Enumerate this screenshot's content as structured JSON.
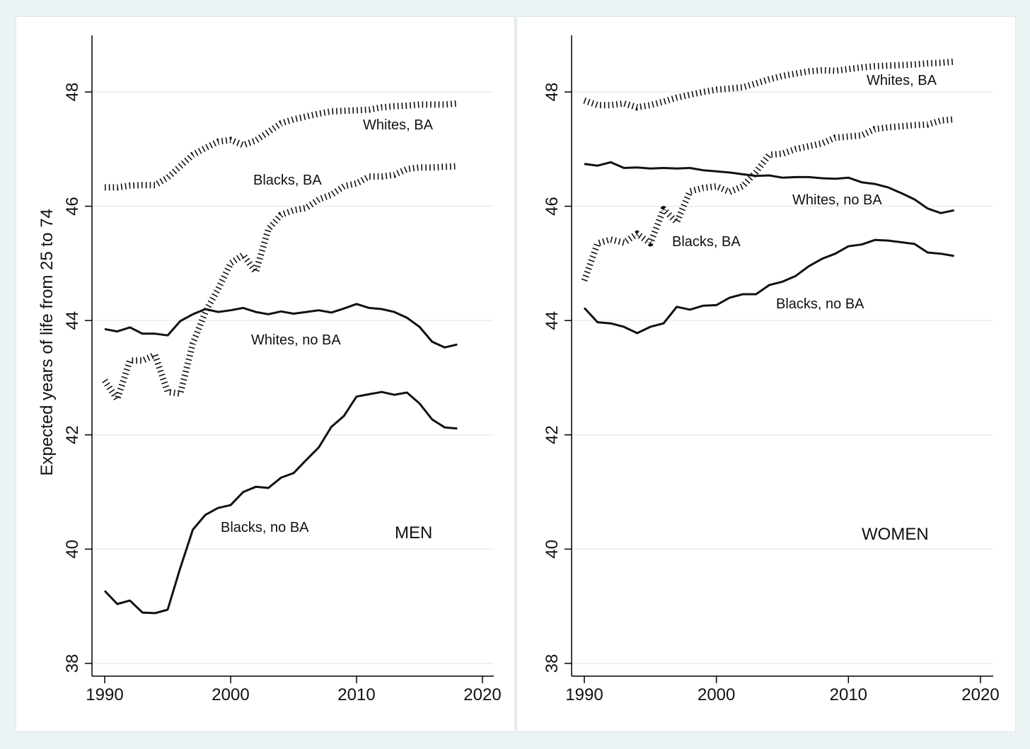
{
  "chart_data": {
    "type": "line",
    "ylabel": "Expected years of life from 25 to 74",
    "ylim": [
      38,
      49
    ],
    "xlim": [
      1989,
      2021
    ],
    "x_ticks": [
      "1990",
      "2000",
      "2010",
      "2020"
    ],
    "y_ticks": [
      "38",
      "40",
      "42",
      "44",
      "46",
      "48"
    ],
    "grid": "horizontal",
    "x": [
      1990,
      1991,
      1992,
      1993,
      1994,
      1995,
      1996,
      1997,
      1998,
      1999,
      2000,
      2001,
      2002,
      2003,
      2004,
      2005,
      2006,
      2007,
      2008,
      2009,
      2010,
      2011,
      2012,
      2013,
      2014,
      2015,
      2016,
      2017,
      2018
    ],
    "panels": [
      {
        "title": "MEN",
        "series": [
          {
            "name": "Whites, BA",
            "style": "dotted",
            "values": [
              46.33,
              46.33,
              46.36,
              46.37,
              46.37,
              46.5,
              46.7,
              46.9,
              47.02,
              47.13,
              47.16,
              47.07,
              47.15,
              47.3,
              47.45,
              47.52,
              47.57,
              47.62,
              47.66,
              47.67,
              47.68,
              47.69,
              47.73,
              47.75,
              47.76,
              47.78,
              47.78,
              47.78,
              47.8
            ]
          },
          {
            "name": "Blacks, BA",
            "style": "dotted",
            "values": [
              42.95,
              42.62,
              43.3,
              43.3,
              43.4,
              42.75,
              42.72,
              43.6,
              44.15,
              44.55,
              45.0,
              45.15,
              44.85,
              45.6,
              45.85,
              45.93,
              45.97,
              46.12,
              46.2,
              46.35,
              46.4,
              46.52,
              46.52,
              46.55,
              46.65,
              46.68,
              46.68,
              46.69,
              46.7
            ]
          },
          {
            "name": "Whites, no BA",
            "style": "solid",
            "values": [
              43.85,
              43.81,
              43.88,
              43.77,
              43.77,
              43.74,
              43.99,
              44.11,
              44.2,
              44.15,
              44.18,
              44.22,
              44.15,
              44.11,
              44.16,
              44.12,
              44.15,
              44.18,
              44.14,
              44.21,
              44.29,
              44.22,
              44.2,
              44.15,
              44.05,
              43.89,
              43.63,
              43.53,
              43.58
            ]
          },
          {
            "name": "Blacks, no BA",
            "style": "solid",
            "values": [
              39.27,
              39.04,
              39.1,
              38.89,
              38.88,
              38.94,
              39.67,
              40.34,
              40.6,
              40.72,
              40.77,
              41.0,
              41.09,
              41.07,
              41.25,
              41.33,
              41.56,
              41.78,
              42.14,
              42.33,
              42.67,
              42.71,
              42.75,
              42.7,
              42.74,
              42.55,
              42.27,
              42.13,
              42.11
            ]
          }
        ]
      },
      {
        "title": "WOMEN",
        "series": [
          {
            "name": "Whites, BA",
            "style": "dotted",
            "values": [
              47.85,
              47.77,
              47.77,
              47.8,
              47.73,
              47.77,
              47.83,
              47.9,
              47.95,
              48.0,
              48.04,
              48.06,
              48.08,
              48.15,
              48.22,
              48.28,
              48.32,
              48.36,
              48.38,
              48.37,
              48.4,
              48.43,
              48.45,
              48.46,
              48.47,
              48.48,
              48.5,
              48.51,
              48.53
            ]
          },
          {
            "name": "Blacks, BA",
            "style": "dotted",
            "values": [
              44.7,
              45.35,
              45.42,
              45.36,
              45.52,
              45.35,
              45.95,
              45.72,
              46.26,
              46.32,
              46.35,
              46.25,
              46.35,
              46.6,
              46.9,
              46.92,
              47.0,
              47.05,
              47.1,
              47.2,
              47.22,
              47.24,
              47.35,
              47.38,
              47.4,
              47.42,
              47.43,
              47.5,
              47.52
            ]
          },
          {
            "name": "Whites, no BA",
            "style": "solid",
            "values": [
              46.74,
              46.71,
              46.77,
              46.67,
              46.68,
              46.66,
              46.67,
              46.66,
              46.67,
              46.63,
              46.61,
              46.59,
              46.56,
              46.53,
              46.54,
              46.5,
              46.51,
              46.51,
              46.49,
              46.48,
              46.5,
              46.42,
              46.39,
              46.33,
              46.23,
              46.12,
              45.96,
              45.88,
              45.93
            ]
          },
          {
            "name": "Blacks, no BA",
            "style": "solid",
            "values": [
              44.22,
              43.97,
              43.95,
              43.89,
              43.78,
              43.89,
              43.95,
              44.24,
              44.19,
              44.26,
              44.27,
              44.4,
              44.46,
              44.46,
              44.62,
              44.68,
              44.78,
              44.95,
              45.08,
              45.17,
              45.3,
              45.33,
              45.41,
              45.4,
              45.37,
              45.34,
              45.19,
              45.17,
              45.13
            ]
          }
        ]
      }
    ]
  }
}
